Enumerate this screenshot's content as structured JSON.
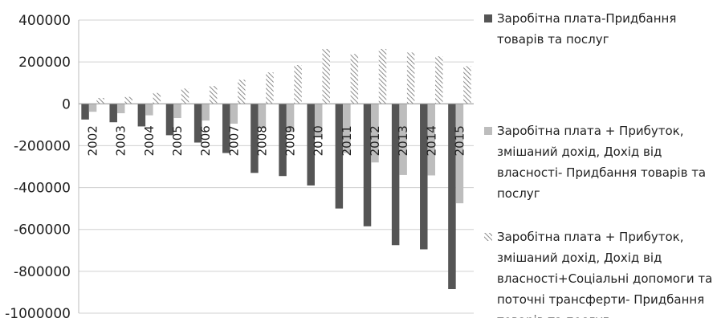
{
  "chart_data": {
    "type": "bar",
    "categories": [
      "2002",
      "2003",
      "2004",
      "2005",
      "2006",
      "2007",
      "2008",
      "2009",
      "2010",
      "2011",
      "2012",
      "2013",
      "2014",
      "2015"
    ],
    "series": [
      {
        "name": "Заробітна плата-Придбання товарів та послуг",
        "color": "#555555",
        "pattern": "solid",
        "values": [
          -75000,
          -88000,
          -108000,
          -150000,
          -185000,
          -235000,
          -330000,
          -345000,
          -390000,
          -500000,
          -585000,
          -675000,
          -695000,
          -885000
        ]
      },
      {
        "name": "Заробітна плата + Прибуток, змішаний дохід, Дохід від власності- Придбання товарів та послуг",
        "color": "#bdbdbd",
        "pattern": "solid",
        "values": [
          -38000,
          -45000,
          -55000,
          -68000,
          -80000,
          -95000,
          -118000,
          -135000,
          -160000,
          -235000,
          -280000,
          -340000,
          -342000,
          -475000
        ]
      },
      {
        "name": "Заробітна плата + Прибуток, змішаний дохід, Дохід від власності+Соціальні допомоги та поточні трансферти- Придбання товарів та послуг",
        "color": "#9a9a9a",
        "pattern": "hatch",
        "values": [
          28000,
          33000,
          52000,
          73000,
          85000,
          115000,
          150000,
          185000,
          262000,
          238000,
          262000,
          245000,
          227000,
          180000
        ]
      }
    ],
    "y_ticks": [
      "400000",
      "200000",
      "0",
      "-200000",
      "-400000",
      "-600000",
      "-800000",
      "-1000000"
    ],
    "y_tick_values": [
      400000,
      200000,
      0,
      -200000,
      -400000,
      -600000,
      -800000,
      -1000000
    ],
    "ylim": [
      -1000000,
      400000
    ],
    "grid": true,
    "legend_position": "right"
  }
}
